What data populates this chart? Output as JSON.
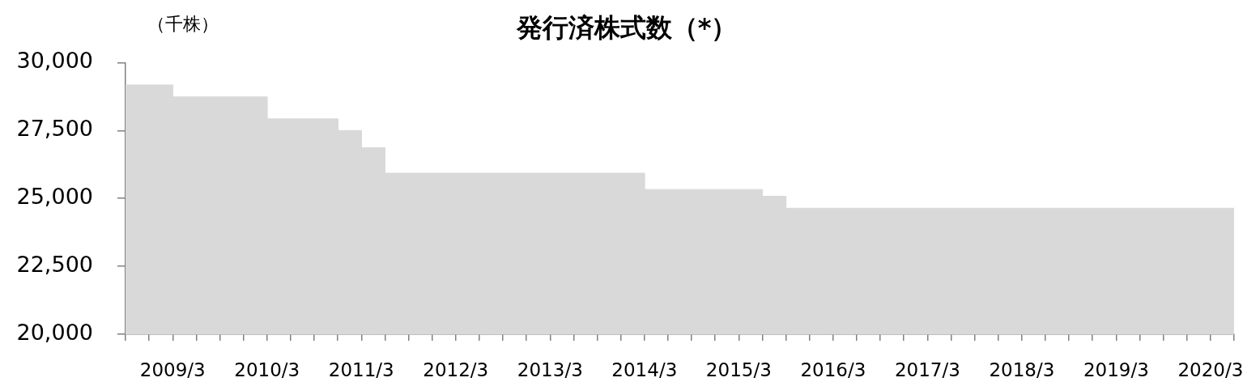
{
  "chart_data": {
    "type": "area",
    "title": "発行済株式数（*）",
    "ylabel": "（千株）",
    "x": [
      "2008-09",
      "2009-03",
      "2009-03",
      "2010-03",
      "2010-03",
      "2010-12",
      "2010-12",
      "2011-03",
      "2011-03",
      "2011-06",
      "2011-06",
      "2014-03",
      "2014-03",
      "2015-06",
      "2015-06",
      "2015-09",
      "2015-09",
      "2020-06"
    ],
    "series": [
      {
        "color": "#d9d9d9",
        "values": [
          29180,
          29180,
          28740,
          28740,
          27930,
          27930,
          27500,
          27500,
          26870,
          26870,
          25930,
          25930,
          25330,
          25330,
          25080,
          25080,
          24640,
          24640
        ]
      }
    ],
    "xlim": [
      "2008-09",
      "2020-06"
    ],
    "xticks": [
      {
        "value": "2008-09",
        "label": null
      },
      {
        "value": "2008-12",
        "label": null
      },
      {
        "value": "2009-03",
        "label": "2009/3"
      },
      {
        "value": "2009-06",
        "label": null
      },
      {
        "value": "2009-09",
        "label": null
      },
      {
        "value": "2009-12",
        "label": null
      },
      {
        "value": "2010-03",
        "label": "2010/3"
      },
      {
        "value": "2010-06",
        "label": null
      },
      {
        "value": "2010-09",
        "label": null
      },
      {
        "value": "2010-12",
        "label": null
      },
      {
        "value": "2011-03",
        "label": "2011/3"
      },
      {
        "value": "2011-06",
        "label": null
      },
      {
        "value": "2011-09",
        "label": null
      },
      {
        "value": "2011-12",
        "label": null
      },
      {
        "value": "2012-03",
        "label": "2012/3"
      },
      {
        "value": "2012-06",
        "label": null
      },
      {
        "value": "2012-09",
        "label": null
      },
      {
        "value": "2012-12",
        "label": null
      },
      {
        "value": "2013-03",
        "label": "2013/3"
      },
      {
        "value": "2013-06",
        "label": null
      },
      {
        "value": "2013-09",
        "label": null
      },
      {
        "value": "2013-12",
        "label": null
      },
      {
        "value": "2014-03",
        "label": "2014/3"
      },
      {
        "value": "2014-06",
        "label": null
      },
      {
        "value": "2014-09",
        "label": null
      },
      {
        "value": "2014-12",
        "label": null
      },
      {
        "value": "2015-03",
        "label": "2015/3"
      },
      {
        "value": "2015-06",
        "label": null
      },
      {
        "value": "2015-09",
        "label": null
      },
      {
        "value": "2015-12",
        "label": null
      },
      {
        "value": "2016-03",
        "label": "2016/3"
      },
      {
        "value": "2016-06",
        "label": null
      },
      {
        "value": "2016-09",
        "label": null
      },
      {
        "value": "2016-12",
        "label": null
      },
      {
        "value": "2017-03",
        "label": "2017/3"
      },
      {
        "value": "2017-06",
        "label": null
      },
      {
        "value": "2017-09",
        "label": null
      },
      {
        "value": "2017-12",
        "label": null
      },
      {
        "value": "2018-03",
        "label": "2018/3"
      },
      {
        "value": "2018-06",
        "label": null
      },
      {
        "value": "2018-09",
        "label": null
      },
      {
        "value": "2018-12",
        "label": null
      },
      {
        "value": "2019-03",
        "label": "2019/3"
      },
      {
        "value": "2019-06",
        "label": null
      },
      {
        "value": "2019-09",
        "label": null
      },
      {
        "value": "2019-12",
        "label": null
      },
      {
        "value": "2020-03",
        "label": "2020/3"
      },
      {
        "value": "2020-06",
        "label": null
      }
    ],
    "ylim": [
      20000,
      30000
    ],
    "yticks": [
      {
        "value": 20000,
        "label": "20,000"
      },
      {
        "value": 22500,
        "label": "22,500"
      },
      {
        "value": 25000,
        "label": "25,000"
      },
      {
        "value": 27500,
        "label": "27,500"
      },
      {
        "value": 30000,
        "label": "30,000"
      }
    ],
    "grid": false,
    "legend": false
  }
}
